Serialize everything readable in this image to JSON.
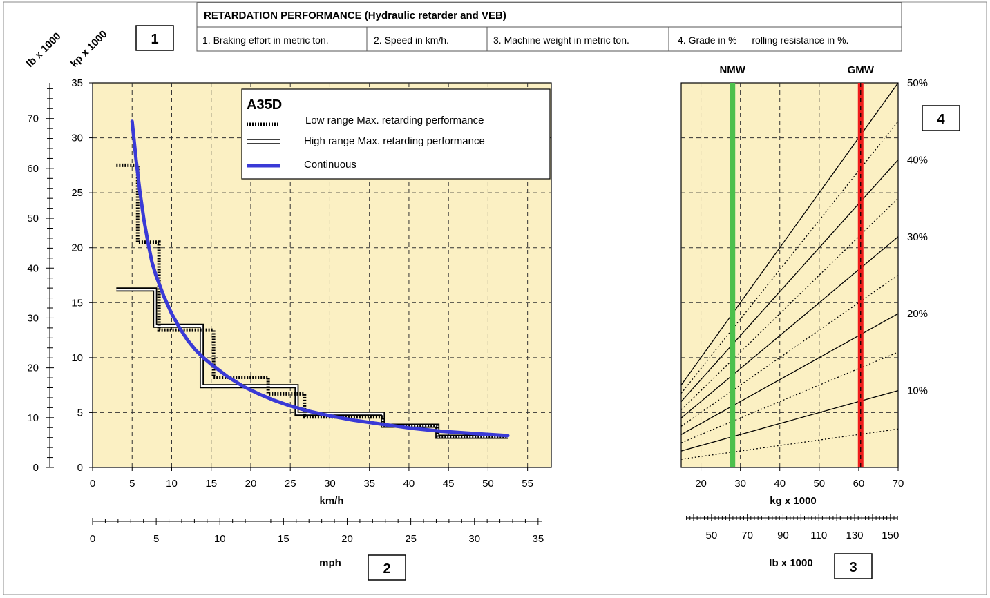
{
  "header": {
    "title": "RETARDATION PERFORMANCE (Hydraulic retarder and VEB)",
    "items": [
      "1. Braking effort in metric ton.",
      "2. Speed in km/h.",
      "3. Machine weight in metric ton.",
      "4. Grade in % — rolling resistance in %."
    ]
  },
  "boxes": {
    "b1": "1",
    "b2": "2",
    "b3": "3",
    "b4": "4"
  },
  "colors": {
    "panel_bg": "#fbf0c3",
    "continuous": "#3a3ad6",
    "nmw": "#4cc04c",
    "gmw": "#ee1c1c"
  },
  "chart_data": [
    {
      "type": "line",
      "title": "A35D",
      "xlabel": "km/h",
      "xlim": [
        0,
        58
      ],
      "x_ticks": [
        0,
        5,
        10,
        15,
        20,
        25,
        30,
        35,
        40,
        45,
        50,
        55
      ],
      "ylim": [
        0,
        35
      ],
      "y_ticks": [
        0,
        5,
        10,
        15,
        20,
        25,
        30,
        35
      ],
      "y_axis_kp_label": "kp x 1000",
      "y_axis_lb_label": "lb x 1000",
      "y_lb_ticks": [
        0,
        10,
        20,
        30,
        40,
        50,
        60,
        70
      ],
      "mph_axis": {
        "label": "mph",
        "ticks": [
          0,
          5,
          10,
          15,
          20,
          25,
          30,
          35
        ]
      },
      "grid": true,
      "legend_position": "top-right",
      "series": [
        {
          "name": "Low range Max. retarding performance",
          "style": "dotted",
          "x": [
            3,
            5.7,
            5.7,
            8.4,
            8.4,
            15.3,
            15.3,
            22.2,
            22.2,
            26.8,
            26.8,
            36.7,
            36.7,
            43.6,
            43.6,
            52.5
          ],
          "y": [
            27.5,
            27.5,
            20.5,
            20.5,
            12.5,
            12.5,
            8.2,
            8.2,
            6.7,
            6.7,
            4.6,
            4.6,
            3.8,
            3.8,
            2.8,
            2.8
          ]
        },
        {
          "name": "High range Max. retarding performance",
          "style": "double",
          "x": [
            3,
            7.9,
            7.9,
            13.8,
            13.8,
            25.8,
            25.8,
            36.7,
            36.7,
            43.6,
            43.6,
            52.5
          ],
          "y": [
            16.2,
            16.2,
            12.9,
            12.9,
            7.4,
            7.4,
            4.9,
            4.9,
            3.8,
            3.8,
            2.8,
            2.8
          ]
        },
        {
          "name": "Continuous",
          "style": "solid",
          "x": [
            5,
            5.5,
            6,
            6.5,
            7,
            7.5,
            8,
            9,
            10,
            11,
            12,
            13,
            14,
            15,
            17,
            19,
            21,
            23,
            25,
            27.5,
            30,
            33,
            36,
            40,
            44,
            48,
            52.5
          ],
          "y": [
            31.5,
            28.0,
            25.0,
            22.5,
            20.5,
            18.7,
            17.5,
            15.6,
            14.0,
            12.7,
            11.6,
            10.7,
            10.0,
            9.4,
            8.3,
            7.4,
            6.7,
            6.1,
            5.6,
            5.1,
            4.7,
            4.3,
            4.0,
            3.6,
            3.3,
            3.1,
            2.9
          ]
        }
      ]
    },
    {
      "type": "line",
      "xlabel": "kg x 1000",
      "xlim": [
        15,
        70
      ],
      "x_ticks": [
        20,
        30,
        40,
        50,
        60,
        70
      ],
      "lb_axis": {
        "label": "lb x 1000",
        "ticks": [
          50,
          70,
          90,
          110,
          130,
          150
        ]
      },
      "grid": true,
      "markers": [
        {
          "label": "NMW",
          "x": 28
        },
        {
          "label": "GMW",
          "x": 60.5
        }
      ],
      "grade_labels": [
        "10%",
        "20%",
        "30%",
        "40%",
        "50%"
      ],
      "grade_lines": [
        5,
        10,
        15,
        20,
        25,
        30,
        35,
        40,
        45,
        50
      ]
    }
  ]
}
